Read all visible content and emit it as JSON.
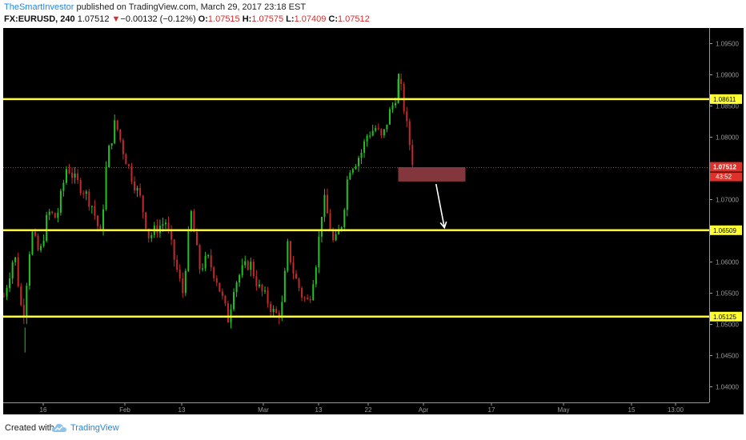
{
  "header": {
    "author": "TheSmartInvestor",
    "published": " published on TradingView.com, March 29, 2017 23:18 EST",
    "symbol": "FX:EURUSD, 240",
    "last": "1.07512",
    "change_arrow": "▼",
    "change": "−0.00132 (−0.12%)",
    "o_label": "O:",
    "o": "1.07515",
    "h_label": "H:",
    "h": "1.07575",
    "l_label": "L:",
    "l": "1.07409",
    "c_label": "C:",
    "c": "1.07512"
  },
  "footer": {
    "created_with": "Created with",
    "brand": "TradingView",
    "logo_icon": "tradingview-cloud-icon"
  },
  "colors": {
    "bg": "#000000",
    "up": "#22c322",
    "down": "#c42a2a",
    "level": "#ffff33",
    "price_tag": "#e0302a",
    "zone": "#8e3c42",
    "arrow": "#ffffff"
  },
  "chart_data": {
    "type": "candlestick",
    "ylim": [
      1.0375,
      1.0975
    ],
    "y_ticks": [
      "1.04000",
      "1.04500",
      "1.05000",
      "1.05500",
      "1.06000",
      "1.06500",
      "1.07000",
      "1.07500",
      "1.08000",
      "1.08500",
      "1.09000",
      "1.09500"
    ],
    "x_ticks": [
      "16",
      "Feb",
      "13",
      "Mar",
      "13",
      "22",
      "Apr",
      "17",
      "May",
      "15",
      "13:00"
    ],
    "levels": [
      "1.08611",
      "1.06509",
      "1.05125"
    ],
    "last_price": "1.07512",
    "countdown": "43:52",
    "range": {
      "low": 1.0455,
      "high": 1.0902
    },
    "path_points": [
      [
        0,
        1.0545
      ],
      [
        5,
        1.0615
      ],
      [
        9,
        1.0505
      ],
      [
        13,
        1.065
      ],
      [
        17,
        1.061
      ],
      [
        21,
        1.068
      ],
      [
        25,
        1.067
      ],
      [
        30,
        1.0755
      ],
      [
        34,
        1.073
      ],
      [
        38,
        1.0715
      ],
      [
        42,
        1.069
      ],
      [
        46,
        1.064
      ],
      [
        49,
        1.0765
      ],
      [
        53,
        1.0825
      ],
      [
        57,
        1.0775
      ],
      [
        61,
        1.0735
      ],
      [
        65,
        1.07
      ],
      [
        69,
        1.064
      ],
      [
        73,
        1.0655
      ],
      [
        77,
        1.0665
      ],
      [
        81,
        1.0605
      ],
      [
        85,
        1.055
      ],
      [
        89,
        1.068
      ],
      [
        93,
        1.059
      ],
      [
        97,
        1.0605
      ],
      [
        101,
        1.0575
      ],
      [
        104,
        1.054
      ],
      [
        107,
        1.0505
      ],
      [
        109,
        1.056
      ],
      [
        113,
        1.0585
      ],
      [
        117,
        1.06
      ],
      [
        121,
        1.056
      ],
      [
        125,
        1.054
      ],
      [
        129,
        1.0515
      ],
      [
        132,
        1.052
      ],
      [
        135,
        1.0625
      ],
      [
        138,
        1.058
      ],
      [
        142,
        1.0545
      ],
      [
        145,
        1.0535
      ],
      [
        149,
        1.061
      ],
      [
        152,
        1.0705
      ],
      [
        155,
        1.066
      ],
      [
        157,
        1.0625
      ],
      [
        161,
        1.0665
      ],
      [
        164,
        1.075
      ],
      [
        167,
        1.076
      ],
      [
        170,
        1.0775
      ],
      [
        173,
        1.0805
      ],
      [
        177,
        1.0815
      ],
      [
        180,
        1.0795
      ],
      [
        183,
        1.0835
      ],
      [
        186,
        1.086
      ],
      [
        188,
        1.0895
      ],
      [
        190,
        1.0855
      ],
      [
        192,
        1.081
      ],
      [
        195,
        1.0751
      ]
    ],
    "wick_extremes": [
      [
        10,
        1.0455
      ],
      [
        188,
        1.0902
      ]
    ],
    "arrow": {
      "from": [
        206,
        1.0725
      ],
      "to": [
        210,
        1.0655
      ]
    },
    "zone": {
      "x": [
        188,
        220
      ],
      "y": [
        1.0729,
        1.0752
      ]
    },
    "x_domain": [
      0,
      336
    ]
  }
}
